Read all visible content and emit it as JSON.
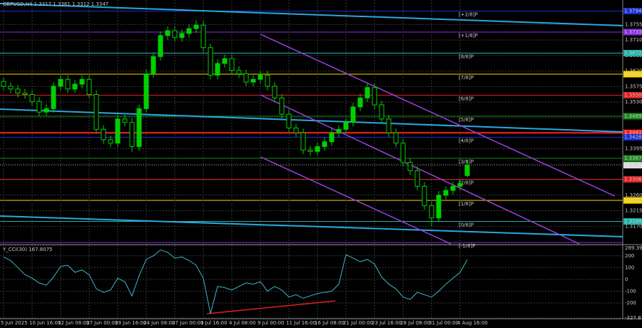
{
  "chart_data": [
    {
      "type": "candlestick",
      "title": "GBPUSD,H4  1.3317 1.3361 1.3312 1.3347",
      "open": [
        1.359,
        1.3576,
        1.3568,
        1.3556,
        1.3552,
        1.3532,
        1.3501,
        1.3511,
        1.3576,
        1.3596,
        1.3568,
        1.3582,
        1.3596,
        1.3552,
        1.3451,
        1.3421,
        1.3411,
        1.3481,
        1.3471,
        1.3401,
        1.3511,
        1.3612,
        1.3662,
        1.3723,
        1.3737,
        1.3717,
        1.3729,
        1.3743,
        1.3753,
        1.3688,
        1.3608,
        1.3642,
        1.3656,
        1.3622,
        1.3612,
        1.3588,
        1.3596,
        1.3608,
        1.3576,
        1.3542,
        1.3495,
        1.3455,
        1.3441,
        1.3391,
        1.3387,
        1.3401,
        1.3415,
        1.3441,
        1.3451,
        1.3471,
        1.3516,
        1.3542,
        1.3572,
        1.3522,
        1.3481,
        1.3441,
        1.3411,
        1.3355,
        1.3331,
        1.3286,
        1.323,
        1.3194,
        1.326,
        1.3274,
        1.3286,
        1.3317
      ],
      "high": [
        1.3602,
        1.3588,
        1.358,
        1.3568,
        1.3564,
        1.3544,
        1.3523,
        1.3588,
        1.3608,
        1.3608,
        1.3594,
        1.3608,
        1.3608,
        1.3564,
        1.3463,
        1.3433,
        1.3493,
        1.3493,
        1.3483,
        1.3523,
        1.3624,
        1.3674,
        1.3735,
        1.3749,
        1.3749,
        1.3741,
        1.3755,
        1.3768,
        1.3765,
        1.37,
        1.3654,
        1.3668,
        1.3668,
        1.3634,
        1.3624,
        1.3608,
        1.362,
        1.362,
        1.3588,
        1.3554,
        1.3507,
        1.3467,
        1.3453,
        1.3403,
        1.3413,
        1.3427,
        1.3453,
        1.3463,
        1.3483,
        1.3528,
        1.3554,
        1.3584,
        1.3584,
        1.3534,
        1.3493,
        1.3453,
        1.3423,
        1.3367,
        1.3343,
        1.3298,
        1.3242,
        1.3272,
        1.3286,
        1.3298,
        1.3306,
        1.3361
      ],
      "low": [
        1.3564,
        1.3556,
        1.3544,
        1.354,
        1.352,
        1.3489,
        1.3489,
        1.3499,
        1.3564,
        1.3556,
        1.3556,
        1.357,
        1.354,
        1.3439,
        1.3409,
        1.3399,
        1.3399,
        1.3459,
        1.3385,
        1.3389,
        1.3499,
        1.36,
        1.365,
        1.3711,
        1.3705,
        1.3705,
        1.3717,
        1.3731,
        1.3676,
        1.3596,
        1.3596,
        1.363,
        1.361,
        1.36,
        1.3576,
        1.3576,
        1.3584,
        1.3564,
        1.353,
        1.3483,
        1.3443,
        1.3429,
        1.3379,
        1.3375,
        1.3375,
        1.3389,
        1.3403,
        1.3429,
        1.3439,
        1.3459,
        1.3504,
        1.353,
        1.351,
        1.3469,
        1.3429,
        1.3399,
        1.3343,
        1.3319,
        1.3274,
        1.3218,
        1.317,
        1.3182,
        1.3248,
        1.3262,
        1.3274,
        1.3312
      ],
      "close": [
        1.3576,
        1.3568,
        1.3556,
        1.3552,
        1.3532,
        1.3501,
        1.3511,
        1.3576,
        1.3596,
        1.3568,
        1.3582,
        1.3596,
        1.3552,
        1.3451,
        1.3421,
        1.3411,
        1.3481,
        1.3471,
        1.3401,
        1.3511,
        1.3612,
        1.3662,
        1.3723,
        1.3737,
        1.3717,
        1.3729,
        1.3743,
        1.3753,
        1.3688,
        1.3608,
        1.3642,
        1.3656,
        1.3622,
        1.3612,
        1.3588,
        1.3596,
        1.3608,
        1.3576,
        1.3542,
        1.3495,
        1.3455,
        1.3441,
        1.3391,
        1.3387,
        1.3401,
        1.3415,
        1.3441,
        1.3451,
        1.3471,
        1.3516,
        1.3542,
        1.3572,
        1.3522,
        1.3481,
        1.3441,
        1.3411,
        1.3355,
        1.3331,
        1.3286,
        1.323,
        1.3194,
        1.326,
        1.3274,
        1.3286,
        1.3294,
        1.3347
      ],
      "color": "#00d000",
      "ylim": [
        1.3119,
        1.3826
      ],
      "yticks": [
        1.3755,
        {
          "value": 1.371,
          "label": "1.3710"
        },
        1.3665,
        {
          "value": 1.362,
          "label": "1.3620"
        },
        1.3575,
        {
          "value": 1.353,
          "label": "1.3530"
        },
        1.3485,
        {
          "value": 1.344,
          "label": "1.3440"
        },
        1.3395,
        {
          "value": 1.335,
          "label": "1.3350"
        },
        1.3305,
        {
          "value": 1.326,
          "label": "1.3260"
        },
        1.3215,
        {
          "value": 1.317,
          "label": "1.3170"
        }
      ],
      "grid": true,
      "levels": [
        {
          "label": "[+2/8]P",
          "value": 1.3794,
          "tag": "1.3794",
          "color": "#1a2fd0"
        },
        {
          "label": "[+1/8]P",
          "value": 1.3733,
          "tag": "1.3733",
          "color": "#8a2be2"
        },
        {
          "label": "[8/8]P",
          "value": 1.3672,
          "tag": "1.3672",
          "color": "#20b2aa"
        },
        {
          "label": "[7/8]P",
          "value": 1.3611,
          "tag": "1.3611",
          "color": "#ffd700"
        },
        {
          "label": "[6/8]P",
          "value": 1.355,
          "tag": "1.3550",
          "color": "#e02020"
        },
        {
          "label": "[5/8]P",
          "value": 1.3489,
          "tag": "1.3489",
          "color": "#1a8a1a"
        },
        {
          "value": 1.3441,
          "tag": "1.3441",
          "color": "#ff2020",
          "width": 2
        },
        {
          "label": "[4/8]P",
          "value": 1.3428,
          "tag": "1.3428",
          "color": "#1a2fd0"
        },
        {
          "label": "[3/8]P",
          "value": 1.3367,
          "tag": "1.3367",
          "color": "#1a8a1a"
        },
        {
          "label": "[2/8]P",
          "value": 1.3306,
          "tag": "1.3306",
          "color": "#e02020"
        },
        {
          "label": "[1/8]P",
          "value": 1.3245,
          "tag": "1.3245",
          "color": "#ffd700"
        },
        {
          "label": "[0/8]P",
          "value": 1.3184,
          "tag": "1.3184",
          "color": "#20b2aa"
        },
        {
          "label": "[-1/8]P",
          "value": 1.3123,
          "color": "#8a2be2"
        }
      ],
      "last_price": 1.3347
    },
    {
      "type": "line",
      "title": "Y_CCI(30) 167.8075",
      "categories": [
        "5 Jun 2025",
        null,
        null,
        null,
        "10 Jun 16:00",
        null,
        null,
        null,
        "12 Jun 08:00",
        null,
        null,
        null,
        "17 Jun 00:00",
        null,
        null,
        null,
        "19 Jun 16:00",
        null,
        null,
        null,
        "24 Jun 08:00",
        null,
        null,
        null,
        "27 Jun 00:00",
        null,
        null,
        null,
        "1 Jul 16:00",
        null,
        null,
        null,
        "4 Jul 08:00",
        null,
        null,
        null,
        "9 Jul 00:00",
        null,
        null,
        null,
        "11 Jul 16:00",
        null,
        null,
        null,
        "16 Jul 08:00",
        null,
        null,
        null,
        "21 Jul 00:00",
        null,
        null,
        null,
        "23 Jul 16:00",
        null,
        null,
        null,
        "28 Jul 08:00",
        null,
        null,
        null,
        "31 Jul 00:00",
        null,
        null,
        null,
        "4 Aug 16:00",
        null
      ],
      "values": [
        190,
        160,
        100,
        40,
        10,
        -30,
        -50,
        20,
        110,
        120,
        60,
        80,
        40,
        -80,
        -110,
        -90,
        10,
        -20,
        -140,
        30,
        170,
        200,
        250,
        230,
        180,
        190,
        160,
        120,
        10,
        -290,
        -60,
        -70,
        -90,
        -60,
        -30,
        -40,
        -20,
        -100,
        -60,
        -90,
        -150,
        -130,
        -160,
        -140,
        -120,
        -110,
        -100,
        -40,
        210,
        180,
        150,
        170,
        130,
        20,
        -40,
        -80,
        -150,
        -170,
        -110,
        -130,
        -150,
        -100,
        -40,
        10,
        60,
        167.8075
      ],
      "color": "#3fb6c8",
      "ylim": [
        -327.832,
        289.3969
      ],
      "yticks": [
        289.3969,
        200,
        100,
        0,
        -100,
        -200,
        -327.832
      ],
      "grid": true
    }
  ]
}
